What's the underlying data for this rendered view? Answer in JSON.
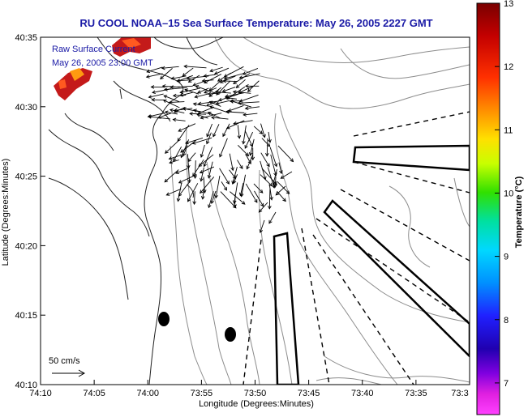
{
  "title": "RU COOL  NOAA–15  Sea Surface Temperature:  May 26, 2005 2227 GMT",
  "overlay": {
    "line1": "Raw Surface Current",
    "line2": "May 26, 2005 23:00 GMT"
  },
  "scale_label": "50 cm/s",
  "chart_data": {
    "type": "map",
    "xlabel": "Longitude (Degrees:Minutes)",
    "ylabel": "Latitude (Degrees:Minutes)",
    "x_ticks": [
      "74:10",
      "74:05",
      "74:00",
      "73:55",
      "73:50",
      "73:45",
      "73:40",
      "73:35",
      "73:3"
    ],
    "y_ticks": [
      "40:35",
      "40:30",
      "40:25",
      "40:20",
      "40:15",
      "40:10"
    ],
    "colorbar": {
      "label": "Temperature (°C)",
      "ticks": [
        "13",
        "12",
        "11",
        "10",
        "9",
        "8",
        "7"
      ],
      "range": [
        6.5,
        13
      ]
    }
  }
}
